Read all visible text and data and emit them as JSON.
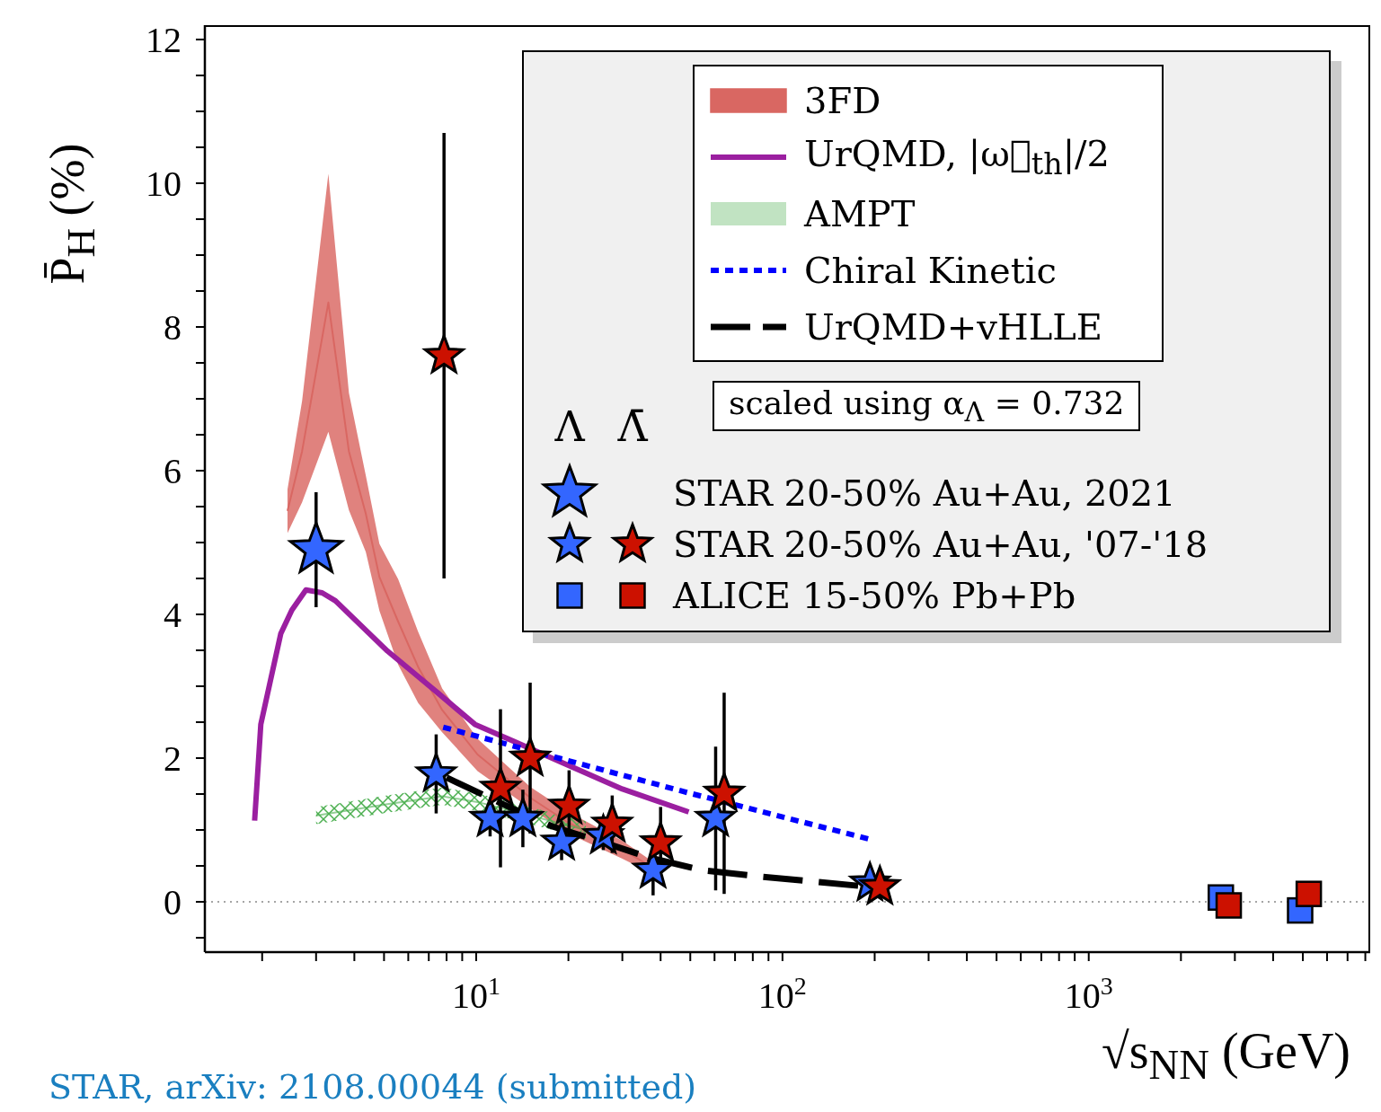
{
  "chart_data": {
    "type": "line",
    "xlabel": "√s$_{NN}$ (GeV)",
    "ylabel": "P̄$_{H}$ (%)",
    "log": "x",
    "xlim": [
      1.3,
      8300
    ],
    "ylim": [
      -0.7,
      12.2
    ],
    "xticks": [
      {
        "value": 2,
        "label": null
      },
      {
        "value": 3,
        "label": null
      },
      {
        "value": 4,
        "label": null
      },
      {
        "value": 5,
        "label": null
      },
      {
        "value": 6,
        "label": null
      },
      {
        "value": 7,
        "label": null
      },
      {
        "value": 8,
        "label": null
      },
      {
        "value": 9,
        "label": null
      },
      {
        "value": 10,
        "label": "10$^{1}$"
      },
      {
        "value": 20,
        "label": null
      },
      {
        "value": 30,
        "label": null
      },
      {
        "value": 40,
        "label": null
      },
      {
        "value": 50,
        "label": null
      },
      {
        "value": 60,
        "label": null
      },
      {
        "value": 70,
        "label": null
      },
      {
        "value": 80,
        "label": null
      },
      {
        "value": 90,
        "label": null
      },
      {
        "value": 100,
        "label": "10$^{2}$"
      },
      {
        "value": 200,
        "label": null
      },
      {
        "value": 300,
        "label": null
      },
      {
        "value": 400,
        "label": null
      },
      {
        "value": 500,
        "label": null
      },
      {
        "value": 600,
        "label": null
      },
      {
        "value": 700,
        "label": null
      },
      {
        "value": 800,
        "label": null
      },
      {
        "value": 900,
        "label": null
      },
      {
        "value": 1000,
        "label": "10$^{3}$"
      },
      {
        "value": 2000,
        "label": null
      },
      {
        "value": 3000,
        "label": null
      },
      {
        "value": 4000,
        "label": null
      },
      {
        "value": 5000,
        "label": null
      },
      {
        "value": 6000,
        "label": null
      },
      {
        "value": 7000,
        "label": null
      },
      {
        "value": 8000,
        "label": null
      }
    ],
    "yticks": [
      {
        "value": -0.5,
        "label": null
      },
      0,
      {
        "value": 0.5,
        "label": null
      },
      {
        "value": 1,
        "label": null
      },
      {
        "value": 1.5,
        "label": null
      },
      2,
      {
        "value": 2.5,
        "label": null
      },
      {
        "value": 3,
        "label": null
      },
      {
        "value": 3.5,
        "label": null
      },
      4,
      {
        "value": 4.5,
        "label": null
      },
      {
        "value": 5,
        "label": null
      },
      {
        "value": 5.5,
        "label": null
      },
      6,
      {
        "value": 6.5,
        "label": null
      },
      {
        "value": 7,
        "label": null
      },
      {
        "value": 7.5,
        "label": null
      },
      8,
      {
        "value": 8.5,
        "label": null
      },
      {
        "value": 9,
        "label": null
      },
      {
        "value": 9.5,
        "label": null
      },
      10,
      {
        "value": 10.5,
        "label": null
      },
      {
        "value": 11,
        "label": null
      },
      {
        "value": 11.5,
        "label": null
      },
      12
    ],
    "grid": false,
    "legend": "top right",
    "ref_lines": [
      {
        "axis": "y",
        "value": 0,
        "color": "#888888",
        "line_style": "dotted"
      }
    ],
    "annotations": [
      "Λ",
      "Λ̄",
      "scaled using α$_{Λ}$ = 0.732",
      "STAR, arXiv: 2108.00044 (submitted)"
    ],
    "series": [
      {
        "name": "3FD",
        "color": "#d96762",
        "x": [
          2.42,
          2.7,
          3.29,
          3.84,
          4.36,
          4.83,
          5.56,
          6.46,
          7.74,
          10.1,
          15,
          20,
          30,
          36.5
        ],
        "values": [
          5.44,
          6.27,
          8.34,
          6.27,
          5.4,
          4.52,
          3.9,
          3.27,
          2.67,
          2.05,
          1.45,
          1.1,
          0.73,
          0.51
        ],
        "lower": [
          5.13,
          5.56,
          6.54,
          5.45,
          4.87,
          4.05,
          3.3,
          2.77,
          2.36,
          1.82,
          1.3,
          0.95,
          0.6,
          0.42
        ],
        "upper": [
          5.74,
          6.97,
          10.13,
          7.08,
          5.93,
          4.98,
          4.49,
          3.76,
          2.97,
          2.27,
          1.6,
          1.25,
          0.85,
          0.6
        ]
      },
      {
        "name": "UrQMD, |ω⃗$_{th}$|/2",
        "type": "line",
        "color": "#9b1fa0",
        "line_style": "solid",
        "x": [
          1.89,
          1.98,
          2.3,
          2.5,
          2.78,
          3.14,
          3.47,
          5.13,
          7.43,
          9.9,
          13.3,
          30,
          49.4
        ],
        "values": [
          1.13,
          2.47,
          3.73,
          4.06,
          4.34,
          4.3,
          4.19,
          3.49,
          2.92,
          2.47,
          2.23,
          1.57,
          1.25
        ]
      },
      {
        "name": "AMPT",
        "color": "#4caf50",
        "x": [
          3.0,
          5.13,
          7.74,
          10.3,
          15,
          22.8
        ],
        "values": [
          1.2,
          1.36,
          1.47,
          1.38,
          null,
          1.0
        ],
        "lower": [
          1.08,
          1.24,
          1.35,
          1.26,
          1.08,
          0.88
        ],
        "upper": [
          1.32,
          1.48,
          1.59,
          1.5,
          1.32,
          1.12
        ]
      },
      {
        "name": "Chiral Kinetic",
        "type": "line",
        "color": "#0000ff",
        "line_style": "dotted",
        "x": [
          7.8,
          49,
          197
        ],
        "values": [
          2.43,
          1.52,
          0.86
        ]
      },
      {
        "name": "UrQMD+vHLLE",
        "type": "line",
        "color": "#000000",
        "line_style": "dashed",
        "x": [
          8.0,
          12.2,
          17.7,
          25.9,
          36.5,
          54.7,
          85,
          191
        ],
        "values": [
          1.73,
          1.36,
          1.05,
          0.83,
          0.62,
          0.44,
          0.35,
          0.21
        ]
      },
      {
        "name": "STAR 20-50% Au+Au, 2021",
        "type": "scatter",
        "marker": "star",
        "color": "#3366ff",
        "x": [
          3.0
        ],
        "values": [
          4.9
        ],
        "errors": [
          0.8
        ]
      },
      {
        "type": "scatter",
        "marker": "star",
        "color": "#3366ff",
        "x": [
          7.4,
          11.1,
          14.2,
          19,
          26,
          37.8,
          60.5,
          193
        ],
        "values": [
          1.78,
          1.16,
          1.16,
          0.83,
          0.92,
          0.44,
          1.16,
          0.26
        ],
        "errors": [
          0.55,
          0.25,
          0.4,
          0.25,
          0.2,
          0.35,
          1.0,
          0.1
        ]
      },
      {
        "name": "STAR 20-50% Au+Au, '07-'18",
        "type": "scatter",
        "marker": "star",
        "color": "#cc1100",
        "x": [
          7.85,
          12,
          15,
          20.1,
          27.8,
          40,
          64.5,
          208
        ],
        "values": [
          7.6,
          1.58,
          2.0,
          1.33,
          1.08,
          0.82,
          1.51,
          0.21
        ],
        "errors": [
          3.1,
          1.1,
          1.05,
          0.5,
          0.4,
          0.5,
          1.4,
          0.1
        ]
      },
      {
        "type": "scatter",
        "marker": "square",
        "color": "#3366ff",
        "x": [
          2700,
          4900
        ],
        "values": [
          0.06,
          -0.12
        ]
      },
      {
        "name": "ALICE 15-50% Pb+Pb",
        "type": "scatter",
        "marker": "square",
        "color": "#cc1100",
        "x": [
          2865,
          5230
        ],
        "values": [
          -0.05,
          0.11
        ]
      }
    ]
  }
}
